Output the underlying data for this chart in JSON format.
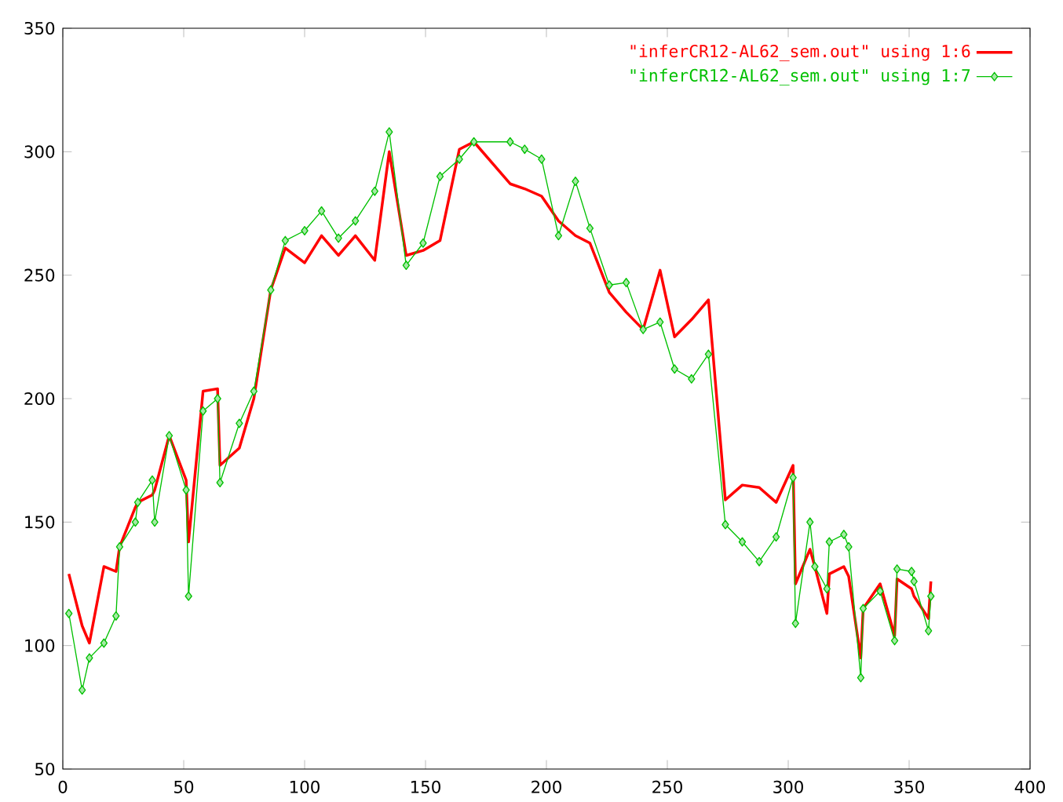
{
  "chart_data": {
    "type": "line",
    "x": [
      2.5,
      8,
      11,
      17,
      22,
      23.5,
      30,
      31,
      37,
      38,
      44,
      51,
      52,
      58,
      64,
      65,
      73,
      79,
      86,
      92,
      100,
      107,
      114,
      121,
      129,
      135,
      142,
      149,
      156,
      164,
      170,
      185,
      191,
      198,
      205,
      212,
      218,
      226,
      233,
      240,
      247,
      253,
      260,
      267,
      274,
      281,
      288,
      295,
      302,
      303,
      309,
      311,
      316,
      317,
      323,
      325,
      330,
      331,
      338,
      344,
      345,
      351,
      352,
      358,
      359
    ],
    "series": [
      {
        "name": "\"inferCR12-AL62_sem.out\" using 1:6",
        "color": "#ff0000",
        "marker": "none",
        "values": [
          129,
          108,
          101,
          132,
          130,
          140,
          156,
          158,
          161,
          163,
          185,
          167,
          142,
          203,
          204,
          173,
          180,
          200,
          244,
          261,
          255,
          266,
          258,
          266,
          256,
          300,
          258,
          260,
          264,
          301,
          304,
          287,
          285,
          282,
          272,
          266,
          263,
          243,
          235,
          228,
          252,
          225,
          232,
          240,
          159,
          165,
          164,
          158,
          173,
          125,
          139,
          132,
          113,
          129,
          132,
          128,
          95,
          115,
          125,
          104,
          127,
          123,
          120,
          111,
          126
        ]
      },
      {
        "name": "\"inferCR12-AL62_sem.out\" using 1:7",
        "color": "#00c000",
        "marker": "diamond",
        "values": [
          113,
          82,
          95,
          101,
          112,
          140,
          150,
          158,
          167,
          150,
          185,
          163,
          120,
          195,
          200,
          166,
          190,
          203,
          244,
          264,
          268,
          276,
          265,
          272,
          284,
          308,
          254,
          263,
          290,
          297,
          304,
          304,
          301,
          297,
          266,
          288,
          269,
          246,
          247,
          228,
          231,
          212,
          208,
          218,
          149,
          142,
          134,
          144,
          168,
          109,
          150,
          132,
          123,
          142,
          145,
          140,
          87,
          115,
          122,
          102,
          131,
          130,
          126,
          106,
          120
        ]
      }
    ],
    "xlim": [
      0,
      400
    ],
    "xticks": [
      0,
      50,
      100,
      150,
      200,
      250,
      300,
      350,
      400
    ],
    "ylim": [
      50,
      350
    ],
    "yticks": [
      50,
      100,
      150,
      200,
      250,
      300,
      350
    ],
    "legend": "top right",
    "grid": false
  }
}
